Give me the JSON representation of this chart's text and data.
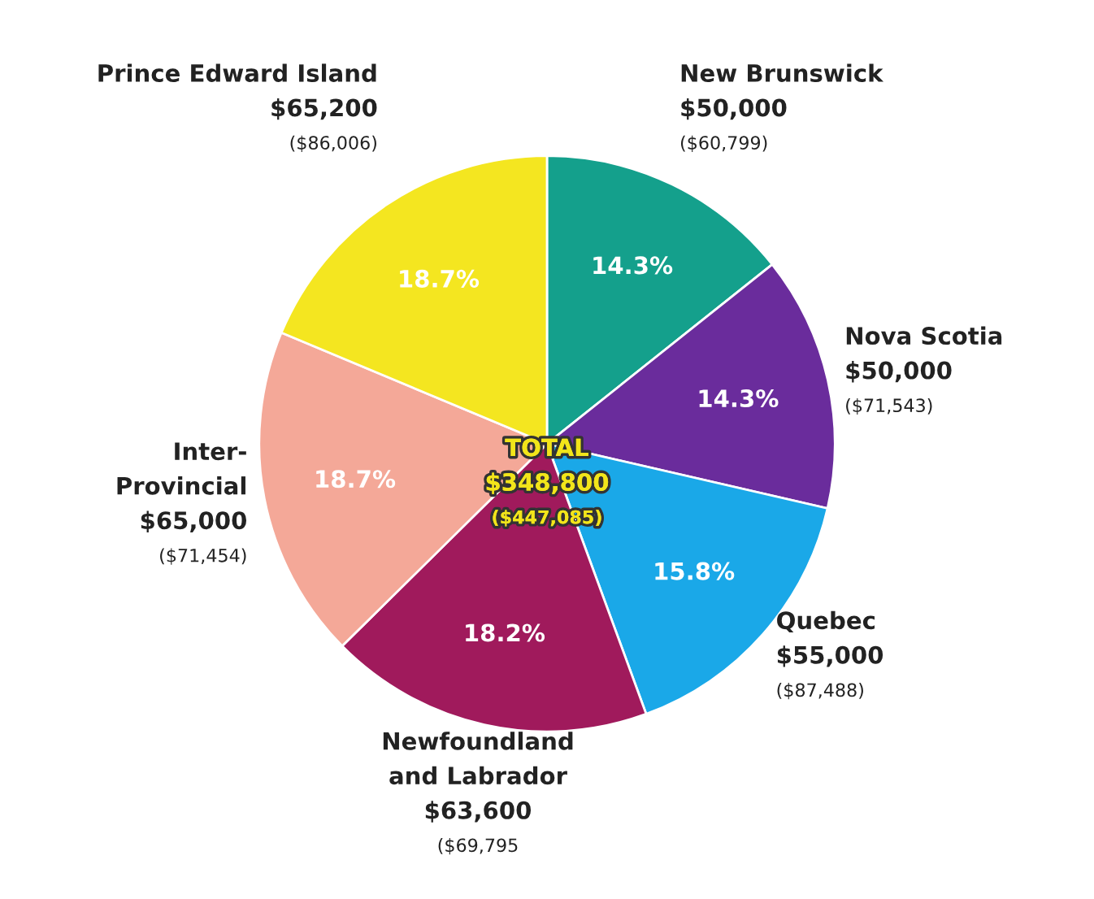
{
  "chart_data": {
    "type": "pie",
    "categories": [
      "New Brunswick\n$50,000\n($60,799)",
      "Nova Scotia\n$50,000\n($71,543)",
      "Quebec\n$55,000\n($87,488)",
      "Newfoundland\nand Labrador\n$63,600\n($69,795",
      "Inter-\nProvincial\n$65,000\n($71,454)",
      "Prince Edward Island\n$65,200\n($86,006)"
    ],
    "values": [
      14.3,
      14.3,
      15.8,
      18.2,
      18.7,
      18.7
    ],
    "value_labels": [
      "14.3%",
      "14.3%",
      "15.8%",
      "18.2%",
      "18.7%",
      "18.7%"
    ],
    "colors": [
      "#14a08c",
      "#6a2c9c",
      "#1aa8e8",
      "#a01a5c",
      "#f4a898",
      "#f4e620"
    ],
    "annotations": [
      "TOTAL\n$348,800\n($447,085)"
    ]
  }
}
